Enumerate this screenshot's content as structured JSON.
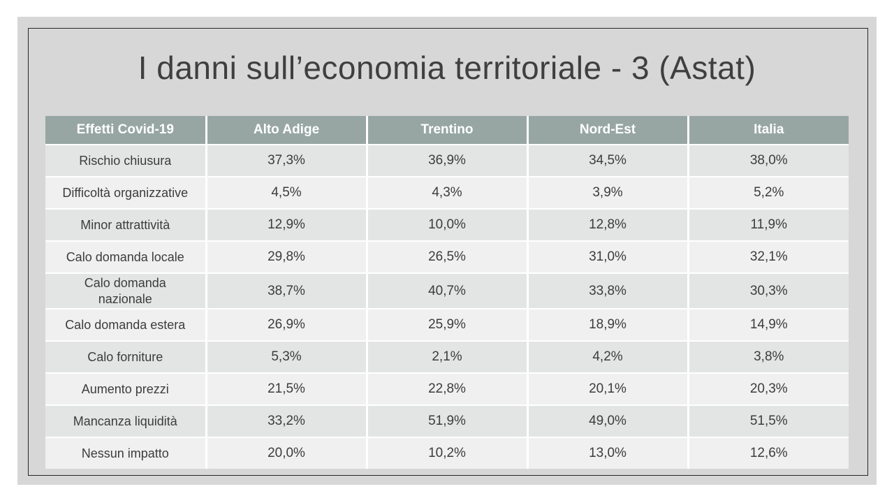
{
  "slide": {
    "title": "I danni sull’economia territoriale - 3 (Astat)"
  },
  "table": {
    "columns": [
      "Effetti Covid-19",
      "Alto Adige",
      "Trentino",
      "Nord-Est",
      "Italia"
    ],
    "rows": [
      {
        "label": "Rischio chiusura",
        "values": [
          "37,3%",
          "36,9%",
          "34,5%",
          "38,0%"
        ]
      },
      {
        "label": "Difficoltà organizzative",
        "values": [
          "4,5%",
          "4,3%",
          "3,9%",
          "5,2%"
        ]
      },
      {
        "label": "Minor attrattività",
        "values": [
          "12,9%",
          "10,0%",
          "12,8%",
          "11,9%"
        ]
      },
      {
        "label": "Calo domanda locale",
        "values": [
          "29,8%",
          "26,5%",
          "31,0%",
          "32,1%"
        ]
      },
      {
        "label": "Calo domanda\nnazionale",
        "values": [
          "38,7%",
          "40,7%",
          "33,8%",
          "30,3%"
        ]
      },
      {
        "label": "Calo domanda estera",
        "values": [
          "26,9%",
          "25,9%",
          "18,9%",
          "14,9%"
        ]
      },
      {
        "label": "Calo forniture",
        "values": [
          "5,3%",
          "2,1%",
          "4,2%",
          "3,8%"
        ]
      },
      {
        "label": "Aumento prezzi",
        "values": [
          "21,5%",
          "22,8%",
          "20,1%",
          "20,3%"
        ]
      },
      {
        "label": "Mancanza liquidità",
        "values": [
          "33,2%",
          "51,9%",
          "49,0%",
          "51,5%"
        ]
      },
      {
        "label": "Nessun impatto",
        "values": [
          "20,0%",
          "10,2%",
          "13,0%",
          "12,6%"
        ]
      }
    ]
  },
  "colors": {
    "page_bg": "#ffffff",
    "slide_bg": "#d7d7d7",
    "slide_border": "#262626",
    "header_bg": "#97a6a3",
    "header_text": "#ffffff",
    "row_odd_bg": "#e2e5e4",
    "row_even_bg": "#eff0ef",
    "cell_text": "#3c3c3c",
    "title_text": "#3f3f3f"
  }
}
